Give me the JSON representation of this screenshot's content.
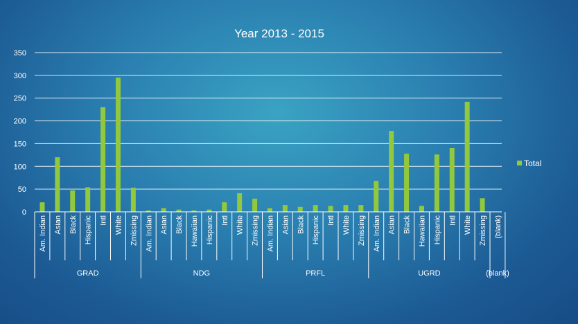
{
  "chart_data": {
    "type": "bar",
    "title": "Year 2013 - 2015",
    "xlabel": "",
    "ylabel": "",
    "ylim": [
      0,
      350
    ],
    "yticks": [
      0,
      50,
      100,
      150,
      200,
      250,
      300,
      350
    ],
    "grid": true,
    "legend": {
      "position": "right",
      "entries": [
        "Total"
      ]
    },
    "colors": {
      "bar": "#92c83e",
      "grid": "#ffffff",
      "text": "#ffffff"
    },
    "series_name": "Total",
    "groups": [
      {
        "name": "GRAD",
        "categories": [
          "Am. Indian",
          "Asian",
          "Black",
          "Hispanic",
          "Intl",
          "White",
          "Zmissing"
        ],
        "values": [
          21,
          120,
          47,
          54,
          230,
          295,
          53
        ]
      },
      {
        "name": "NDG",
        "categories": [
          "Am. Indian",
          "Asian",
          "Black",
          "Hawaiian",
          "Hispanic",
          "Intl",
          "White",
          "Zmissing"
        ],
        "values": [
          3,
          8,
          5,
          3,
          5,
          21,
          41,
          29
        ]
      },
      {
        "name": "PRFL",
        "categories": [
          "Am. Indian",
          "Asian",
          "Black",
          "Hispanic",
          "Intl",
          "White",
          "Zmissing"
        ],
        "values": [
          8,
          15,
          11,
          15,
          13,
          15,
          15
        ]
      },
      {
        "name": "UGRD",
        "categories": [
          "Am. Indian",
          "Asian",
          "Black",
          "Hawaiian",
          "Hispanic",
          "Intl",
          "White",
          "Zmissing"
        ],
        "values": [
          68,
          178,
          128,
          13,
          126,
          140,
          242,
          30
        ]
      },
      {
        "name": "(blank)",
        "categories": [
          "(blank)"
        ],
        "values": [
          null
        ]
      }
    ]
  }
}
